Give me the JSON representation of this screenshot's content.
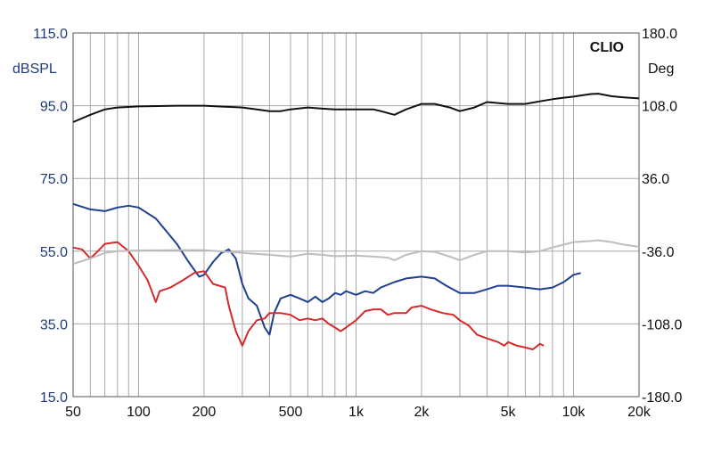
{
  "chart_data": {
    "type": "line",
    "brand_label": "CLIO",
    "x_scale": "log",
    "xlim": [
      50,
      20000
    ],
    "x_ticks": [
      {
        "value": 50,
        "label": "50"
      },
      {
        "value": 100,
        "label": "100"
      },
      {
        "value": 200,
        "label": "200"
      },
      {
        "value": 500,
        "label": "500"
      },
      {
        "value": 1000,
        "label": "1k"
      },
      {
        "value": 2000,
        "label": "2k"
      },
      {
        "value": 5000,
        "label": "5k"
      },
      {
        "value": 10000,
        "label": "10k"
      },
      {
        "value": 20000,
        "label": "20k"
      }
    ],
    "y_left": {
      "label": "dBSPL",
      "lim": [
        15,
        115
      ],
      "ticks": [
        "15.0",
        "35.0",
        "55.0",
        "75.0",
        "95.0",
        "115.0"
      ],
      "tick_values": [
        15,
        35,
        55,
        75,
        95,
        115
      ]
    },
    "y_right": {
      "label": "Deg",
      "lim": [
        -180,
        180
      ],
      "ticks": [
        "-180.0",
        "-108.0",
        "-36.0",
        "36.0",
        "108.0",
        "180.0"
      ],
      "tick_values": [
        -180,
        -108,
        -36,
        36,
        108,
        180
      ]
    },
    "grid": true,
    "series": [
      {
        "color": "#111111",
        "points": [
          [
            50,
            90.5
          ],
          [
            60,
            92.5
          ],
          [
            70,
            94
          ],
          [
            80,
            94.5
          ],
          [
            100,
            94.8
          ],
          [
            150,
            95
          ],
          [
            200,
            95
          ],
          [
            300,
            94.5
          ],
          [
            350,
            94
          ],
          [
            400,
            93.5
          ],
          [
            450,
            93.5
          ],
          [
            500,
            94
          ],
          [
            600,
            94.5
          ],
          [
            700,
            94.2
          ],
          [
            800,
            94
          ],
          [
            1000,
            94
          ],
          [
            1200,
            94
          ],
          [
            1300,
            93.5
          ],
          [
            1500,
            92.5
          ],
          [
            1700,
            94
          ],
          [
            2000,
            95.5
          ],
          [
            2300,
            95.5
          ],
          [
            2700,
            94.5
          ],
          [
            3000,
            93.5
          ],
          [
            3500,
            94.5
          ],
          [
            4000,
            96
          ],
          [
            5000,
            95.5
          ],
          [
            6000,
            95.5
          ],
          [
            7000,
            96.2
          ],
          [
            8000,
            96.8
          ],
          [
            9000,
            97.2
          ],
          [
            10000,
            97.5
          ],
          [
            12000,
            98.2
          ],
          [
            13000,
            98.3
          ],
          [
            15000,
            97.6
          ],
          [
            17000,
            97.3
          ],
          [
            20000,
            97
          ]
        ]
      },
      {
        "color": "#1f3f8f",
        "points": [
          [
            50,
            68
          ],
          [
            60,
            66.5
          ],
          [
            70,
            66
          ],
          [
            80,
            67
          ],
          [
            90,
            67.5
          ],
          [
            100,
            67
          ],
          [
            120,
            64
          ],
          [
            150,
            57
          ],
          [
            170,
            52
          ],
          [
            190,
            48
          ],
          [
            200,
            48.5
          ],
          [
            220,
            52
          ],
          [
            240,
            54.5
          ],
          [
            260,
            55.5
          ],
          [
            280,
            53
          ],
          [
            300,
            46
          ],
          [
            320,
            42
          ],
          [
            350,
            40
          ],
          [
            380,
            34
          ],
          [
            400,
            32
          ],
          [
            420,
            38
          ],
          [
            450,
            42
          ],
          [
            500,
            43
          ],
          [
            550,
            42
          ],
          [
            600,
            41
          ],
          [
            650,
            42.5
          ],
          [
            700,
            41
          ],
          [
            750,
            42
          ],
          [
            800,
            43.5
          ],
          [
            850,
            43
          ],
          [
            900,
            44
          ],
          [
            1000,
            43
          ],
          [
            1100,
            44
          ],
          [
            1200,
            43.5
          ],
          [
            1300,
            45
          ],
          [
            1500,
            46.5
          ],
          [
            1700,
            47.5
          ],
          [
            2000,
            48
          ],
          [
            2300,
            47.5
          ],
          [
            2600,
            45.5
          ],
          [
            3000,
            43.5
          ],
          [
            3500,
            43.5
          ],
          [
            4000,
            44.5
          ],
          [
            4500,
            45.5
          ],
          [
            5000,
            45.5
          ],
          [
            6000,
            45
          ],
          [
            7000,
            44.5
          ],
          [
            8000,
            45
          ],
          [
            9000,
            46.5
          ],
          [
            10000,
            48.5
          ],
          [
            10800,
            49
          ]
        ]
      },
      {
        "color": "#d42a2a",
        "points": [
          [
            50,
            56
          ],
          [
            55,
            55.5
          ],
          [
            60,
            53
          ],
          [
            65,
            55
          ],
          [
            70,
            57
          ],
          [
            80,
            57.5
          ],
          [
            90,
            55
          ],
          [
            100,
            51
          ],
          [
            110,
            47
          ],
          [
            115,
            44
          ],
          [
            120,
            41
          ],
          [
            125,
            44
          ],
          [
            140,
            45
          ],
          [
            160,
            47
          ],
          [
            180,
            49
          ],
          [
            200,
            49.5
          ],
          [
            220,
            46
          ],
          [
            250,
            45
          ],
          [
            260,
            40
          ],
          [
            280,
            33
          ],
          [
            300,
            29
          ],
          [
            320,
            33
          ],
          [
            350,
            36
          ],
          [
            380,
            36.5
          ],
          [
            400,
            38
          ],
          [
            450,
            38
          ],
          [
            500,
            37.5
          ],
          [
            550,
            36
          ],
          [
            600,
            36.5
          ],
          [
            650,
            36
          ],
          [
            700,
            36.5
          ],
          [
            750,
            35
          ],
          [
            800,
            34
          ],
          [
            850,
            33
          ],
          [
            900,
            34
          ],
          [
            1000,
            36
          ],
          [
            1100,
            38.5
          ],
          [
            1200,
            39
          ],
          [
            1300,
            39
          ],
          [
            1400,
            37.5
          ],
          [
            1500,
            38
          ],
          [
            1700,
            38
          ],
          [
            1800,
            39.5
          ],
          [
            2000,
            40
          ],
          [
            2200,
            39
          ],
          [
            2500,
            38
          ],
          [
            2800,
            37.5
          ],
          [
            3000,
            36
          ],
          [
            3300,
            34.5
          ],
          [
            3600,
            32
          ],
          [
            4000,
            31
          ],
          [
            4500,
            30
          ],
          [
            4800,
            29
          ],
          [
            5000,
            30
          ],
          [
            5500,
            29
          ],
          [
            6000,
            28.5
          ],
          [
            6500,
            28
          ],
          [
            7000,
            29.5
          ],
          [
            7300,
            29
          ]
        ]
      },
      {
        "color": "#bdbdbd",
        "points": [
          [
            50,
            51.5
          ],
          [
            60,
            53
          ],
          [
            70,
            54.5
          ],
          [
            80,
            55
          ],
          [
            100,
            55.2
          ],
          [
            150,
            55.3
          ],
          [
            200,
            55.3
          ],
          [
            300,
            54.5
          ],
          [
            400,
            54
          ],
          [
            500,
            53.5
          ],
          [
            600,
            54.3
          ],
          [
            700,
            54
          ],
          [
            800,
            53.6
          ],
          [
            1000,
            53.8
          ],
          [
            1200,
            53.5
          ],
          [
            1400,
            53.2
          ],
          [
            1500,
            52.5
          ],
          [
            1700,
            54
          ],
          [
            2000,
            55
          ],
          [
            2300,
            54.8
          ],
          [
            2700,
            53.5
          ],
          [
            3000,
            52.5
          ],
          [
            3500,
            54
          ],
          [
            4000,
            55
          ],
          [
            5000,
            55
          ],
          [
            6000,
            54.6
          ],
          [
            7000,
            55
          ],
          [
            8000,
            56
          ],
          [
            10000,
            57.5
          ],
          [
            12000,
            57.8
          ],
          [
            13000,
            58
          ],
          [
            15000,
            57.5
          ],
          [
            17000,
            56.8
          ],
          [
            20000,
            56.2
          ]
        ]
      }
    ]
  }
}
